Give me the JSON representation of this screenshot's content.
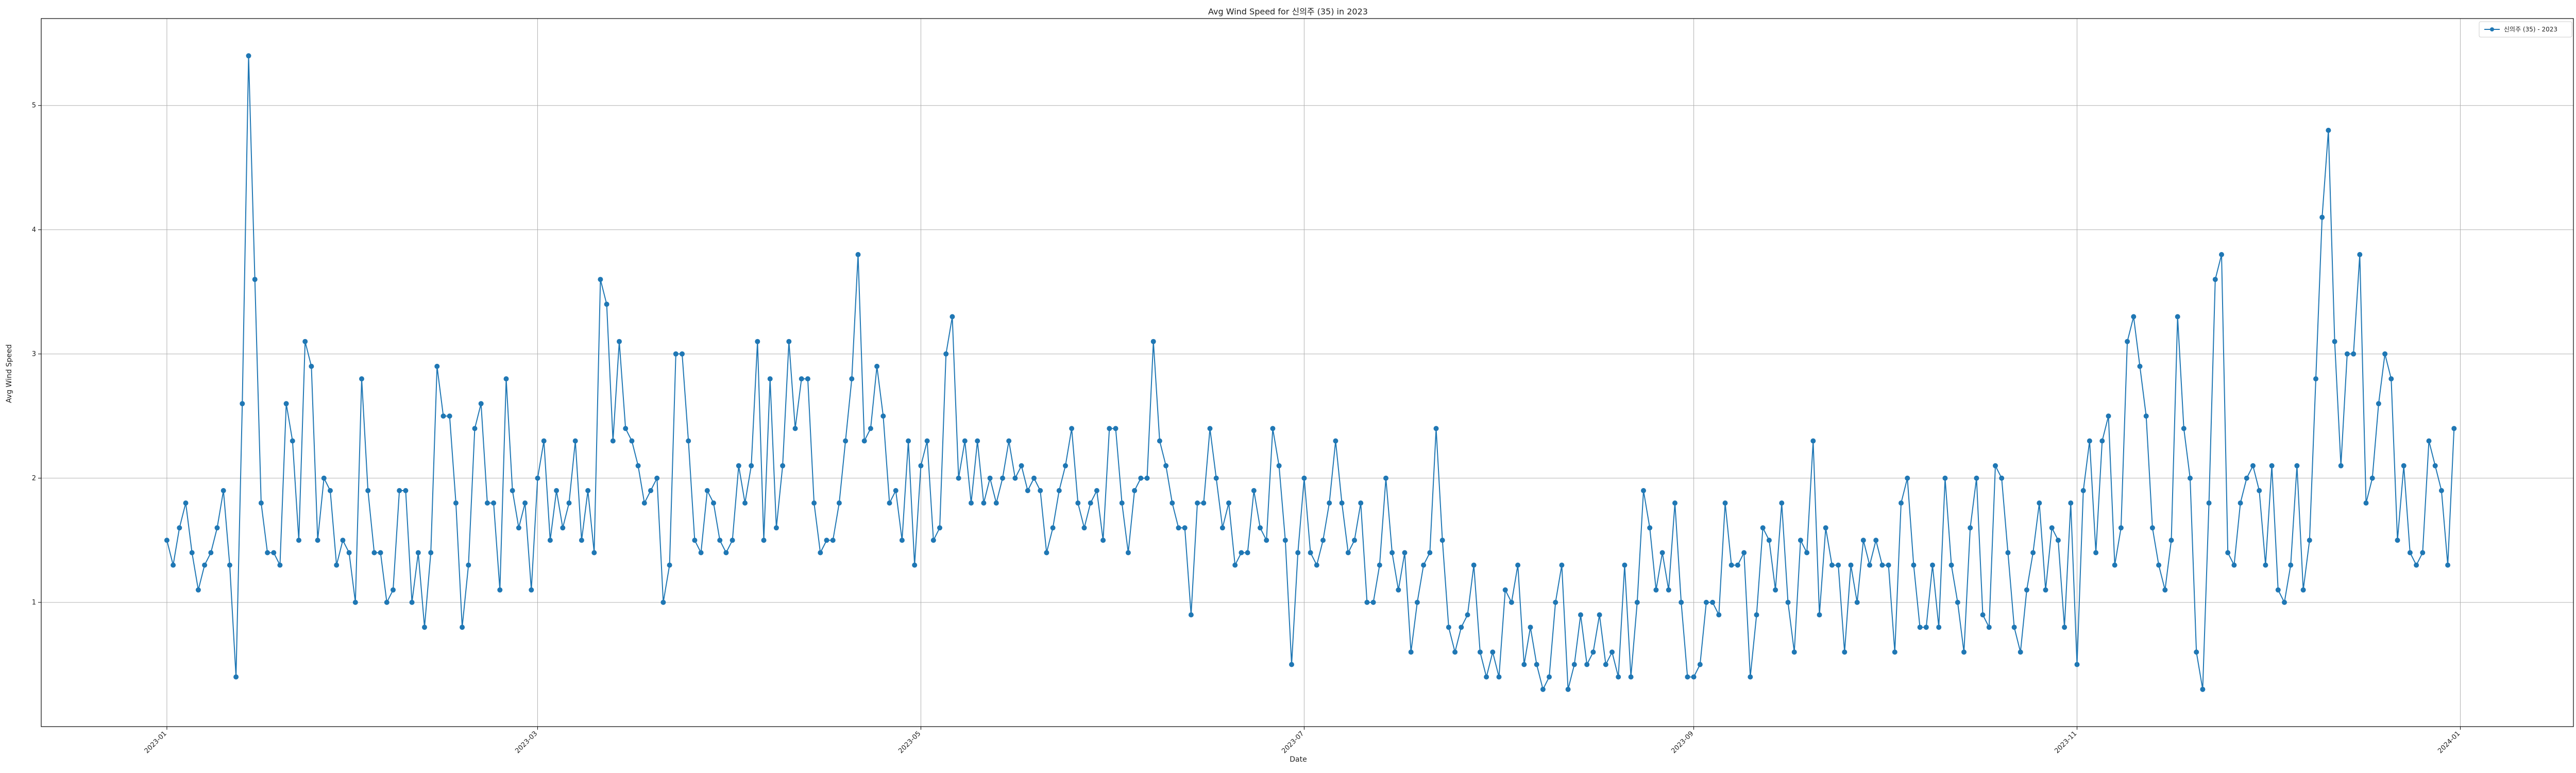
{
  "chart_data": {
    "type": "line",
    "title": "Avg Wind Speed for 신의주 (35) in 2023",
    "xlabel": "Date",
    "ylabel": "Avg Wind Speed",
    "x_start": "2023-01-01",
    "x_ticks": [
      "2023-01",
      "2023-03",
      "2023-05",
      "2023-07",
      "2023-09",
      "2023-11",
      "2024-01"
    ],
    "y_ticks": [
      1,
      2,
      3,
      4,
      5
    ],
    "xlim": [
      "2022-12-12",
      "2024-01-19"
    ],
    "ylim": [
      0.0,
      5.7
    ],
    "grid": true,
    "legend": "top-right",
    "colors": {
      "line": "#1f77b4",
      "grid": "#b0b0b0",
      "axes": "#000000"
    },
    "series": [
      {
        "name": "신의주 (35) - 2023",
        "values": [
          1.5,
          1.3,
          1.6,
          1.8,
          1.4,
          1.1,
          1.3,
          1.4,
          1.6,
          1.9,
          1.3,
          0.4,
          2.6,
          5.4,
          3.6,
          1.8,
          1.4,
          1.4,
          1.3,
          2.6,
          2.3,
          1.5,
          3.1,
          2.9,
          1.5,
          2.0,
          1.9,
          1.3,
          1.5,
          1.4,
          1.0,
          2.8,
          1.9,
          1.4,
          1.4,
          1.0,
          1.1,
          1.9,
          1.9,
          1.0,
          1.4,
          0.8,
          1.4,
          2.9,
          2.5,
          2.5,
          1.8,
          0.8,
          1.3,
          2.4,
          2.6,
          1.8,
          1.8,
          1.1,
          2.8,
          1.9,
          1.6,
          1.8,
          1.1,
          2.0,
          2.3,
          1.5,
          1.9,
          1.6,
          1.8,
          2.3,
          1.5,
          1.9,
          1.4,
          3.6,
          3.4,
          2.3,
          3.1,
          2.4,
          2.3,
          2.1,
          1.8,
          1.9,
          2.0,
          1.0,
          1.3,
          3.0,
          3.0,
          2.3,
          1.5,
          1.4,
          1.9,
          1.8,
          1.5,
          1.4,
          1.5,
          2.1,
          1.8,
          2.1,
          3.1,
          1.5,
          2.8,
          1.6,
          2.1,
          3.1,
          2.4,
          2.8,
          2.8,
          1.8,
          1.4,
          1.5,
          1.5,
          1.8,
          2.3,
          2.8,
          3.8,
          2.3,
          2.4,
          2.9,
          2.5,
          1.8,
          1.9,
          1.5,
          2.3,
          1.3,
          2.1,
          2.3,
          1.5,
          1.6,
          3.0,
          3.3,
          2.0,
          2.3,
          1.8,
          2.3,
          1.8,
          2.0,
          1.8,
          2.0,
          2.3,
          2.0,
          2.1,
          1.9,
          2.0,
          1.9,
          1.4,
          1.6,
          1.9,
          2.1,
          2.4,
          1.8,
          1.6,
          1.8,
          1.9,
          1.5,
          2.4,
          2.4,
          1.8,
          1.4,
          1.9,
          2.0,
          2.0,
          3.1,
          2.3,
          2.1,
          1.8,
          1.6,
          1.6,
          0.9,
          1.8,
          1.8,
          2.4,
          2.0,
          1.6,
          1.8,
          1.3,
          1.4,
          1.4,
          1.9,
          1.6,
          1.5,
          2.4,
          2.1,
          1.5,
          0.5,
          1.4,
          2.0,
          1.4,
          1.3,
          1.5,
          1.8,
          2.3,
          1.8,
          1.4,
          1.5,
          1.8,
          1.0,
          1.0,
          1.3,
          2.0,
          1.4,
          1.1,
          1.4,
          0.6,
          1.0,
          1.3,
          1.4,
          2.4,
          1.5,
          0.8,
          0.6,
          0.8,
          0.9,
          1.3,
          0.6,
          0.4,
          0.6,
          0.4,
          1.1,
          1.0,
          1.3,
          0.5,
          0.8,
          0.5,
          0.3,
          0.4,
          1.0,
          1.3,
          0.3,
          0.5,
          0.9,
          0.5,
          0.6,
          0.9,
          0.5,
          0.6,
          0.4,
          1.3,
          0.4,
          1.0,
          1.9,
          1.6,
          1.1,
          1.4,
          1.1,
          1.8,
          1.0,
          0.4,
          0.4,
          0.5,
          1.0,
          1.0,
          0.9,
          1.8,
          1.3,
          1.3,
          1.4,
          0.4,
          0.9,
          1.6,
          1.5,
          1.1,
          1.8,
          1.0,
          0.6,
          1.5,
          1.4,
          2.3,
          0.9,
          1.6,
          1.3,
          1.3,
          0.6,
          1.3,
          1.0,
          1.5,
          1.3,
          1.5,
          1.3,
          1.3,
          0.6,
          1.8,
          2.0,
          1.3,
          0.8,
          0.8,
          1.3,
          0.8,
          2.0,
          1.3,
          1.0,
          0.6,
          1.6,
          2.0,
          0.9,
          0.8,
          2.1,
          2.0,
          1.4,
          0.8,
          0.6,
          1.1,
          1.4,
          1.8,
          1.1,
          1.6,
          1.5,
          0.8,
          1.8,
          0.5,
          1.9,
          2.3,
          1.4,
          2.3,
          2.5,
          1.3,
          1.6,
          3.1,
          3.3,
          2.9,
          2.5,
          1.6,
          1.3,
          1.1,
          1.5,
          3.3,
          2.4,
          2.0,
          0.6,
          0.3,
          1.8,
          3.6,
          3.8,
          1.4,
          1.3,
          1.8,
          2.0,
          2.1,
          1.9,
          1.3,
          2.1,
          1.1,
          1.0,
          1.3,
          2.1,
          1.1,
          1.5,
          2.8,
          4.1,
          4.8,
          3.1,
          2.1,
          3.0,
          3.0,
          3.8,
          1.8,
          2.0,
          2.6,
          3.0,
          2.8,
          1.5,
          2.1,
          1.4,
          1.3,
          1.4,
          2.3,
          2.1,
          1.9,
          1.3,
          2.4
        ]
      }
    ]
  }
}
